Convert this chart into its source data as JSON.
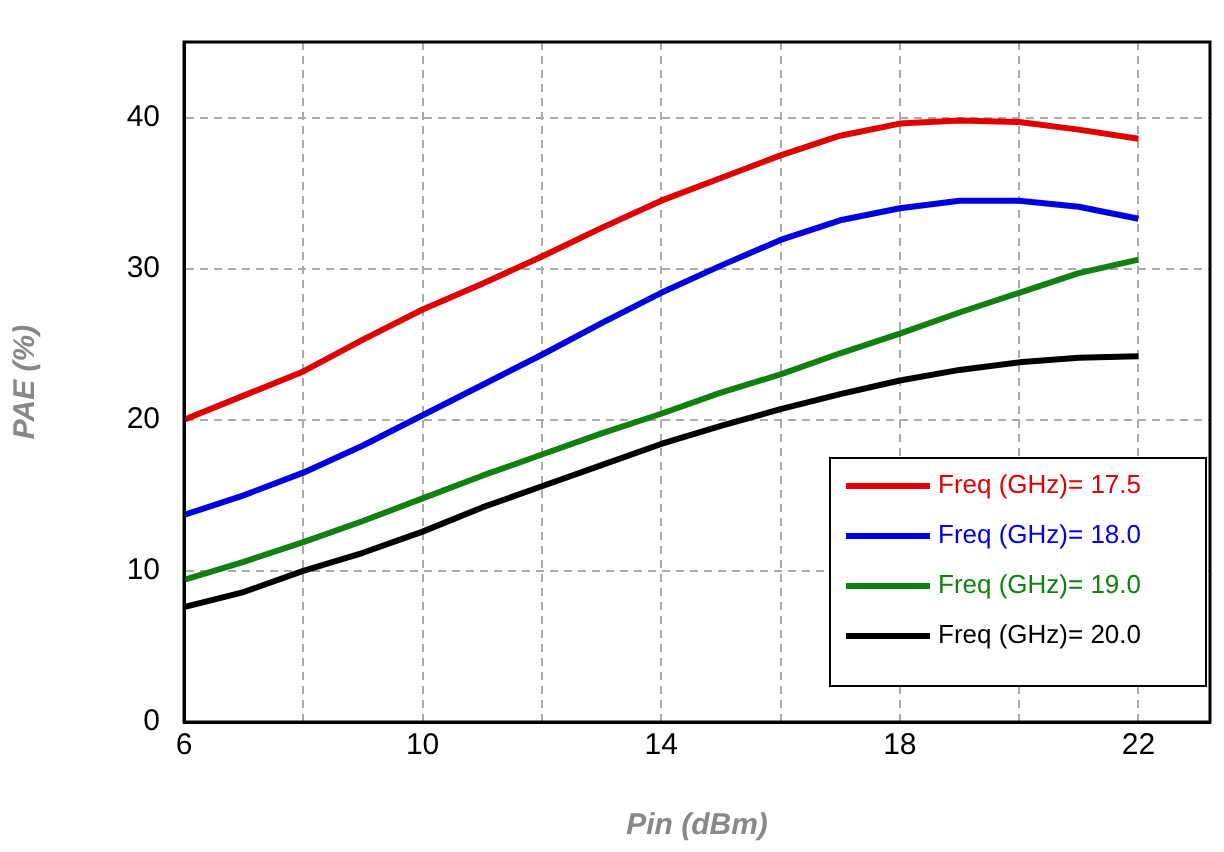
{
  "chart_data": {
    "type": "line",
    "xlabel": "Pin (dBm)",
    "ylabel": "PAE (%)",
    "x": [
      6,
      7,
      8,
      9,
      10,
      11,
      12,
      13,
      14,
      15,
      16,
      17,
      18,
      19,
      20,
      21,
      22
    ],
    "series": [
      {
        "name": "Freq (GHz)= 17.5",
        "color": "#e00000",
        "values": [
          20,
          21.6,
          23.2,
          25.3,
          27.3,
          29.0,
          30.8,
          32.7,
          34.5,
          36.0,
          37.5,
          38.8,
          39.6,
          39.8,
          39.7,
          39.2,
          38.6
        ]
      },
      {
        "name": "Freq (GHz)= 18.0",
        "color": "#0000e0",
        "values": [
          13.7,
          15.0,
          16.5,
          18.3,
          20.3,
          22.3,
          24.3,
          26.4,
          28.4,
          30.2,
          31.9,
          33.2,
          34.0,
          34.5,
          34.5,
          34.1,
          33.3
        ]
      },
      {
        "name": "Freq (GHz)= 19.0",
        "color": "#108010",
        "values": [
          9.4,
          10.6,
          11.9,
          13.3,
          14.8,
          16.3,
          17.7,
          19.1,
          20.4,
          21.8,
          23.0,
          24.4,
          25.7,
          27.1,
          28.4,
          29.7,
          30.6
        ]
      },
      {
        "name": "Freq (GHz)= 20.0",
        "color": "#000000",
        "values": [
          7.6,
          8.6,
          10.0,
          11.2,
          12.6,
          14.2,
          15.6,
          17.0,
          18.4,
          19.6,
          20.7,
          21.7,
          22.6,
          23.3,
          23.8,
          24.1,
          24.2
        ]
      }
    ],
    "xlim": [
      6,
      23.2
    ],
    "xticks": [
      6,
      {
        "value": 8,
        "label": null
      },
      10,
      {
        "value": 12,
        "label": null
      },
      14,
      {
        "value": 16,
        "label": null
      },
      18,
      {
        "value": 20,
        "label": null
      },
      22
    ],
    "ylim": [
      0,
      45
    ],
    "yticks": [
      0,
      10,
      20,
      30,
      40
    ],
    "grid": true,
    "legend": "bottom right",
    "marker": "none",
    "line_style": "solid"
  }
}
